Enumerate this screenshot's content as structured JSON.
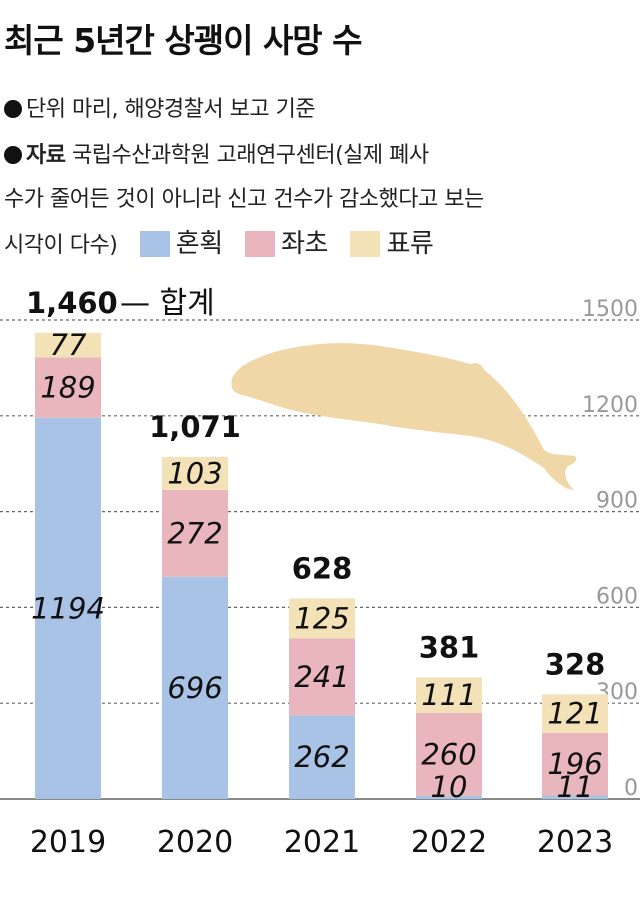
{
  "header": {
    "title": "최근 5년간 상괭이 사망 수",
    "unit_line": "단위  마리, 해양경찰서 보고 기준",
    "source_label": "자료",
    "source_line1": " 국립수산과학원 고래연구센터(실제 폐사",
    "source_line2": "수가 줄어든 것이 아니라 신고 건수가 감소했다고 보는",
    "source_line3": "시각이 다수)"
  },
  "chart_data": {
    "type": "bar",
    "stacked": true,
    "categories": [
      "2019",
      "2020",
      "2021",
      "2022",
      "2023"
    ],
    "series": [
      {
        "name": "혼획",
        "color": "#a9c3e6",
        "values": [
          1194,
          696,
          262,
          10,
          11
        ]
      },
      {
        "name": "좌초",
        "color": "#eab6be",
        "values": [
          189,
          272,
          241,
          260,
          196
        ]
      },
      {
        "name": "표류",
        "color": "#f3e1b8",
        "values": [
          77,
          103,
          125,
          111,
          121
        ]
      }
    ],
    "totals": [
      "1,460",
      "1,071",
      "628",
      "381",
      "328"
    ],
    "total_note": "— 합계",
    "yticks": [
      "1500",
      "1200",
      "900",
      "600",
      "300",
      "0"
    ],
    "ytick_values": [
      1500,
      1200,
      900,
      600,
      300,
      0
    ],
    "ylim": [
      0,
      1500
    ],
    "grid": "dashed",
    "legend_position": "top",
    "decoration": "finless-porpoise-silhouette"
  }
}
